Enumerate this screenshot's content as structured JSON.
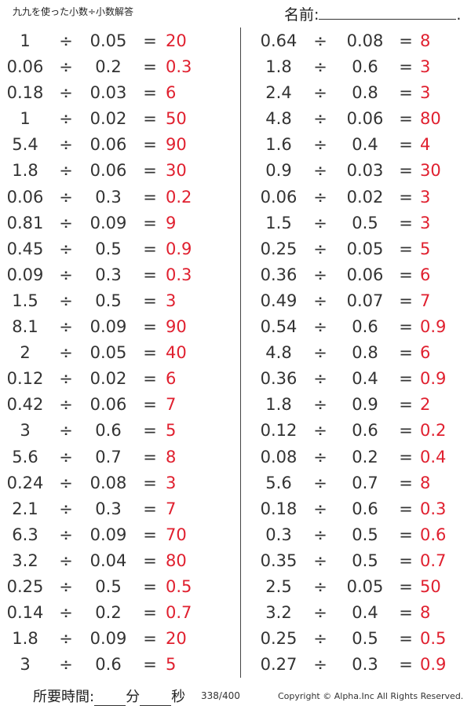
{
  "title": "九九を使った小数÷小数解答",
  "name_label": "名前:",
  "name_end": ".",
  "operator": "÷",
  "equals": "=",
  "left": [
    [
      "1",
      "0.05",
      "20"
    ],
    [
      "0.06",
      "0.2",
      "0.3"
    ],
    [
      "0.18",
      "0.03",
      "6"
    ],
    [
      "1",
      "0.02",
      "50"
    ],
    [
      "5.4",
      "0.06",
      "90"
    ],
    [
      "1.8",
      "0.06",
      "30"
    ],
    [
      "0.06",
      "0.3",
      "0.2"
    ],
    [
      "0.81",
      "0.09",
      "9"
    ],
    [
      "0.45",
      "0.5",
      "0.9"
    ],
    [
      "0.09",
      "0.3",
      "0.3"
    ],
    [
      "1.5",
      "0.5",
      "3"
    ],
    [
      "8.1",
      "0.09",
      "90"
    ],
    [
      "2",
      "0.05",
      "40"
    ],
    [
      "0.12",
      "0.02",
      "6"
    ],
    [
      "0.42",
      "0.06",
      "7"
    ],
    [
      "3",
      "0.6",
      "5"
    ],
    [
      "5.6",
      "0.7",
      "8"
    ],
    [
      "0.24",
      "0.08",
      "3"
    ],
    [
      "2.1",
      "0.3",
      "7"
    ],
    [
      "6.3",
      "0.09",
      "70"
    ],
    [
      "3.2",
      "0.04",
      "80"
    ],
    [
      "0.25",
      "0.5",
      "0.5"
    ],
    [
      "0.14",
      "0.2",
      "0.7"
    ],
    [
      "1.8",
      "0.09",
      "20"
    ],
    [
      "3",
      "0.6",
      "5"
    ]
  ],
  "right": [
    [
      "0.64",
      "0.08",
      "8"
    ],
    [
      "1.8",
      "0.6",
      "3"
    ],
    [
      "2.4",
      "0.8",
      "3"
    ],
    [
      "4.8",
      "0.06",
      "80"
    ],
    [
      "1.6",
      "0.4",
      "4"
    ],
    [
      "0.9",
      "0.03",
      "30"
    ],
    [
      "0.06",
      "0.02",
      "3"
    ],
    [
      "1.5",
      "0.5",
      "3"
    ],
    [
      "0.25",
      "0.05",
      "5"
    ],
    [
      "0.36",
      "0.06",
      "6"
    ],
    [
      "0.49",
      "0.07",
      "7"
    ],
    [
      "0.54",
      "0.6",
      "0.9"
    ],
    [
      "4.8",
      "0.8",
      "6"
    ],
    [
      "0.36",
      "0.4",
      "0.9"
    ],
    [
      "1.8",
      "0.9",
      "2"
    ],
    [
      "0.12",
      "0.6",
      "0.2"
    ],
    [
      "0.08",
      "0.2",
      "0.4"
    ],
    [
      "5.6",
      "0.7",
      "8"
    ],
    [
      "0.18",
      "0.6",
      "0.3"
    ],
    [
      "0.3",
      "0.5",
      "0.6"
    ],
    [
      "0.35",
      "0.5",
      "0.7"
    ],
    [
      "2.5",
      "0.05",
      "50"
    ],
    [
      "3.2",
      "0.4",
      "8"
    ],
    [
      "0.25",
      "0.5",
      "0.5"
    ],
    [
      "0.27",
      "0.3",
      "0.9"
    ]
  ],
  "footer": {
    "time_label": "所要時間:",
    "minutes": "分",
    "seconds": "秒",
    "page": "338/400",
    "copyright": "Copyright © Alpha.Inc All Rights Reserved."
  }
}
